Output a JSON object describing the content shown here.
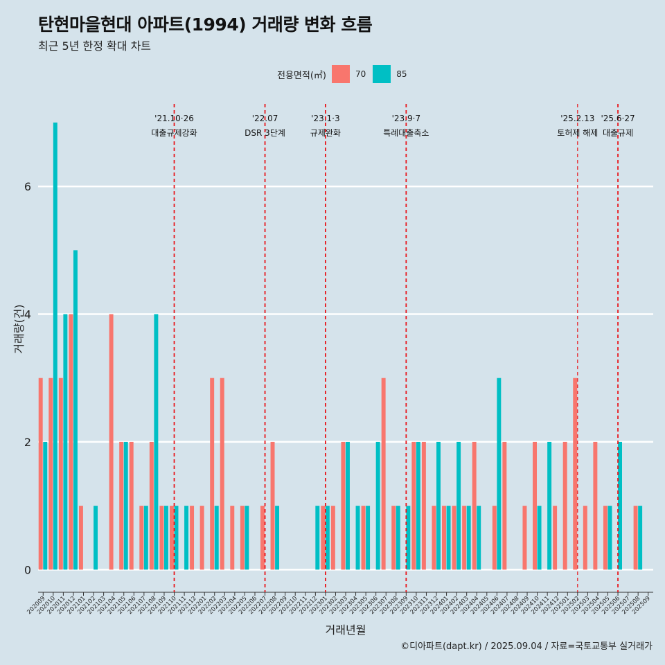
{
  "title": "탄현마을현대 아파트(1994) 거래량 변화 흐름",
  "subtitle": "최근 5년 한정 확대 차트",
  "caption": "©디아파트(dapt.kr) / 2025.09.04 / 자료=국토교통부 실거래가",
  "legend": {
    "title": "전용면적(㎡)",
    "items": [
      {
        "label": "70",
        "color": "#f8766d"
      },
      {
        "label": "85",
        "color": "#00bfc4"
      }
    ]
  },
  "chart_data": {
    "type": "bar",
    "xlabel": "거래년월",
    "ylabel": "거래량(건)",
    "ylim": [
      -0.3,
      7.4
    ],
    "yticks": [
      0,
      2,
      4,
      6
    ],
    "grid": true,
    "legend_position": "top",
    "categories": [
      "202009",
      "202010",
      "202011",
      "202012",
      "202101",
      "202102",
      "202103",
      "202104",
      "202105",
      "202106",
      "202107",
      "202108",
      "202109",
      "202110",
      "202111",
      "202112",
      "202201",
      "202202",
      "202203",
      "202204",
      "202205",
      "202206",
      "202207",
      "202208",
      "202209",
      "202210",
      "202211",
      "202212",
      "202301",
      "202302",
      "202303",
      "202304",
      "202305",
      "202306",
      "202307",
      "202308",
      "202309",
      "202310",
      "202311",
      "202312",
      "202401",
      "202402",
      "202403",
      "202404",
      "202405",
      "202406",
      "202407",
      "202408",
      "202409",
      "202410",
      "202411",
      "202412",
      "202501",
      "202502",
      "202503",
      "202504",
      "202505",
      "202506",
      "202507",
      "202508",
      "202509"
    ],
    "series": [
      {
        "name": "70",
        "color": "#f8766d",
        "values": [
          3,
          3,
          3,
          4,
          1,
          0,
          0,
          4,
          2,
          2,
          1,
          2,
          1,
          1,
          0,
          1,
          1,
          3,
          3,
          1,
          1,
          0,
          1,
          2,
          0,
          0,
          0,
          0,
          1,
          1,
          2,
          0,
          1,
          0,
          3,
          1,
          0,
          2,
          2,
          1,
          1,
          1,
          1,
          2,
          0,
          1,
          2,
          0,
          1,
          2,
          0,
          1,
          2,
          3,
          1,
          2,
          1,
          0,
          0,
          1,
          0
        ]
      },
      {
        "name": "85",
        "color": "#00bfc4",
        "values": [
          2,
          7,
          4,
          5,
          0,
          1,
          0,
          0,
          2,
          0,
          1,
          4,
          1,
          1,
          1,
          0,
          0,
          1,
          0,
          0,
          1,
          0,
          0,
          1,
          0,
          0,
          0,
          1,
          1,
          0,
          2,
          1,
          1,
          2,
          0,
          1,
          1,
          2,
          0,
          2,
          1,
          2,
          1,
          1,
          0,
          3,
          0,
          0,
          0,
          1,
          2,
          0,
          0,
          0,
          0,
          0,
          1,
          2,
          0,
          1,
          0
        ]
      }
    ],
    "events": [
      {
        "at": "202110",
        "date": "'21.10·26",
        "label": "대출규제강화"
      },
      {
        "at": "202207",
        "date": "'22.07",
        "label": "DSR 3단계"
      },
      {
        "at": "202301",
        "date": "'23.1·3",
        "label": "규제완화"
      },
      {
        "at": "202309",
        "date": "'23.9·7",
        "label": "특례대출축소"
      },
      {
        "at": "202502",
        "date": "'25.2.13",
        "label": "토허제 해제"
      },
      {
        "at": "202506",
        "date": "'25.6·27",
        "label": "대출규제"
      }
    ]
  }
}
